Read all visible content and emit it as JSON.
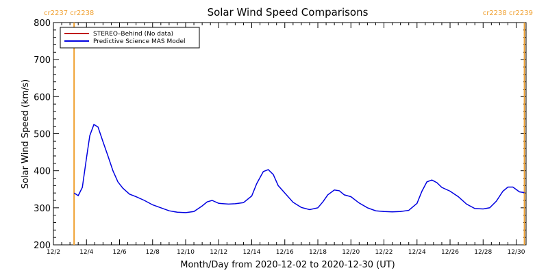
{
  "chart_data": {
    "type": "line",
    "title": "Solar Wind Speed Comparisons",
    "xlabel": "Month/Day from 2020-12-02 to 2020-12-30 (UT)",
    "ylabel": "Solar Wind Speed (km/s)",
    "xlim": [
      0,
      28.6
    ],
    "ylim": [
      200,
      800
    ],
    "yticks": [
      200,
      300,
      400,
      500,
      600,
      700,
      800
    ],
    "xticks": [
      {
        "day": 0,
        "label": "12/2"
      },
      {
        "day": 2,
        "label": "12/4"
      },
      {
        "day": 4,
        "label": "12/6"
      },
      {
        "day": 6,
        "label": "12/8"
      },
      {
        "day": 8,
        "label": "12/10"
      },
      {
        "day": 10,
        "label": "12/12"
      },
      {
        "day": 12,
        "label": "12/14"
      },
      {
        "day": 14,
        "label": "12/16"
      },
      {
        "day": 16,
        "label": "12/18"
      },
      {
        "day": 18,
        "label": "12/20"
      },
      {
        "day": 20,
        "label": "12/22"
      },
      {
        "day": 22,
        "label": "12/24"
      },
      {
        "day": 24,
        "label": "12/26"
      },
      {
        "day": 26,
        "label": "12/28"
      },
      {
        "day": 28,
        "label": "12/30"
      }
    ],
    "carrington": [
      {
        "day": 1.25,
        "label": "cr2237 cr2238",
        "side": "left"
      },
      {
        "day": 28.5,
        "label": "cr2238 cr2239",
        "side": "right"
      }
    ],
    "carrington_color": "#f0a030",
    "legend": {
      "placement": "top-left"
    },
    "series": [
      {
        "name": "STEREO–Behind (No data)",
        "color": "#c00000",
        "x": [],
        "y": []
      },
      {
        "name": "Predictive Science MAS Model",
        "color": "#0000e0",
        "x": [
          1.25,
          1.5,
          1.75,
          2.0,
          2.2,
          2.45,
          2.7,
          3.0,
          3.3,
          3.6,
          3.9,
          4.2,
          4.6,
          5.0,
          5.5,
          6.0,
          6.5,
          7.0,
          7.5,
          8.0,
          8.5,
          9.0,
          9.3,
          9.6,
          10.0,
          10.3,
          10.6,
          11.0,
          11.5,
          12.0,
          12.3,
          12.7,
          13.0,
          13.3,
          13.6,
          14.0,
          14.5,
          15.0,
          15.5,
          16.0,
          16.3,
          16.6,
          17.0,
          17.3,
          17.6,
          18.0,
          18.5,
          19.0,
          19.5,
          20.0,
          20.5,
          21.0,
          21.5,
          22.0,
          22.3,
          22.6,
          22.9,
          23.2,
          23.5,
          24.0,
          24.5,
          25.0,
          25.5,
          26.0,
          26.4,
          26.8,
          27.2,
          27.5,
          27.8,
          28.2,
          28.5
        ],
        "y": [
          340,
          333,
          355,
          435,
          495,
          525,
          518,
          478,
          440,
          400,
          370,
          353,
          337,
          330,
          320,
          308,
          300,
          292,
          288,
          287,
          290,
          305,
          316,
          320,
          312,
          311,
          310,
          311,
          314,
          332,
          365,
          398,
          403,
          390,
          360,
          340,
          315,
          301,
          295,
          300,
          316,
          335,
          348,
          346,
          335,
          330,
          313,
          300,
          292,
          290,
          289,
          290,
          293,
          312,
          345,
          370,
          375,
          368,
          355,
          345,
          330,
          310,
          298,
          297,
          300,
          318,
          345,
          356,
          356,
          343,
          341
        ]
      }
    ]
  }
}
